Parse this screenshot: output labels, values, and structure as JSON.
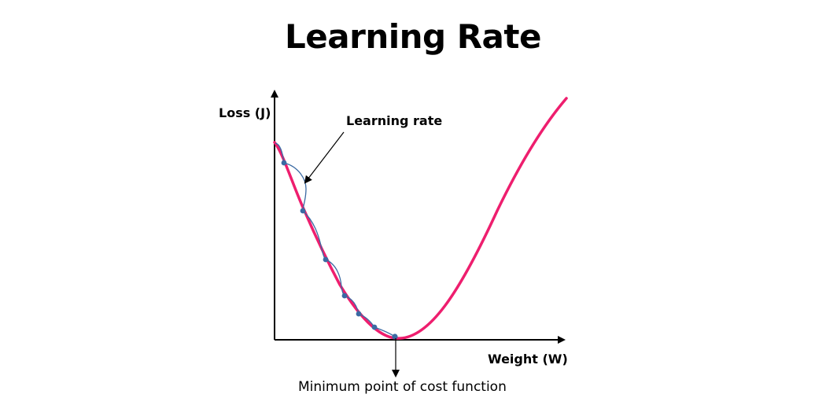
{
  "title": "Learning Rate",
  "y_axis_label": "Loss (J)",
  "x_axis_label": "Weight (W)",
  "annotations": {
    "learning_rate": "Learning rate",
    "minimum": "Minimum point of cost function"
  },
  "colors": {
    "loss_curve": "#ee1e6e",
    "steps": "#3a6aa3",
    "axes": "#000000"
  }
}
